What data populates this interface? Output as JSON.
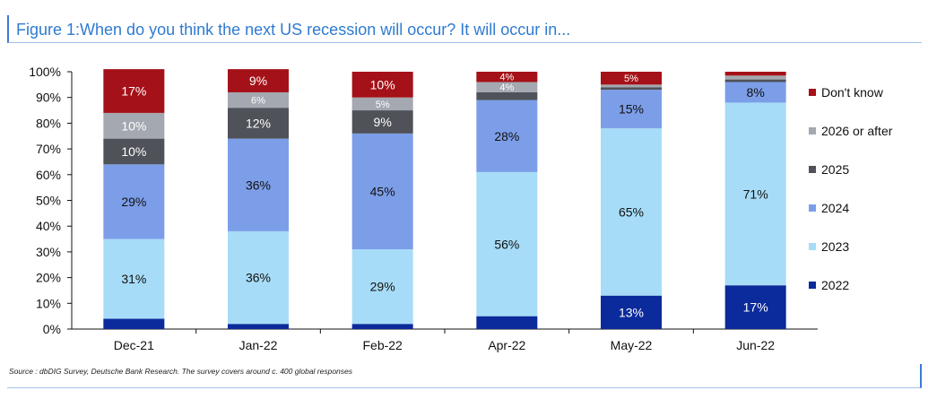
{
  "figure": {
    "title": "Figure 1:When do you think the next US recession will occur? It will occur in...",
    "source": "Source : dbDIG Survey, Deutsche Bank Research. The survey covers around c. 400 global responses"
  },
  "chart_data": {
    "type": "bar",
    "stacked": true,
    "title": "When do you think the next US recession will occur? It will occur in...",
    "xlabel": "",
    "ylabel": "",
    "ylim": [
      0,
      100
    ],
    "yticks": [
      "0%",
      "10%",
      "20%",
      "30%",
      "40%",
      "50%",
      "60%",
      "70%",
      "80%",
      "90%",
      "100%"
    ],
    "categories": [
      "Dec-21",
      "Jan-22",
      "Feb-22",
      "Apr-22",
      "May-22",
      "Jun-22"
    ],
    "legend_position": "right",
    "series": [
      {
        "name": "2022",
        "color": "#0b2a9b",
        "text_color": "#ffffff",
        "values": [
          4,
          2,
          2,
          5,
          13,
          17
        ],
        "labels": [
          "",
          "",
          "",
          "",
          "13%",
          "17%"
        ]
      },
      {
        "name": "2023",
        "color": "#a7dcf8",
        "text_color": "#111111",
        "values": [
          31,
          36,
          29,
          56,
          65,
          71
        ],
        "labels": [
          "31%",
          "36%",
          "29%",
          "56%",
          "65%",
          "71%"
        ]
      },
      {
        "name": "2024",
        "color": "#7c9ee8",
        "text_color": "#111111",
        "values": [
          29,
          36,
          45,
          28,
          15,
          8
        ],
        "labels": [
          "29%",
          "36%",
          "45%",
          "28%",
          "15%",
          "8%"
        ]
      },
      {
        "name": "2025",
        "color": "#4f5258",
        "text_color": "#ffffff",
        "values": [
          10,
          12,
          9,
          3,
          1,
          1
        ],
        "labels": [
          "10%",
          "12%",
          "9%",
          "",
          "",
          ""
        ]
      },
      {
        "name": "2026 or after",
        "color": "#a4a8b0",
        "text_color": "#ffffff",
        "values": [
          10,
          6,
          5,
          4,
          1,
          1.5
        ],
        "labels": [
          "10%",
          "6%",
          "5%",
          "4%",
          "",
          ""
        ]
      },
      {
        "name": "Don't know",
        "color": "#a51118",
        "text_color": "#ffffff",
        "values": [
          17,
          9,
          10,
          4,
          5,
          1.5
        ],
        "labels": [
          "17%",
          "9%",
          "10%",
          "4%",
          "5%",
          ""
        ]
      }
    ]
  }
}
